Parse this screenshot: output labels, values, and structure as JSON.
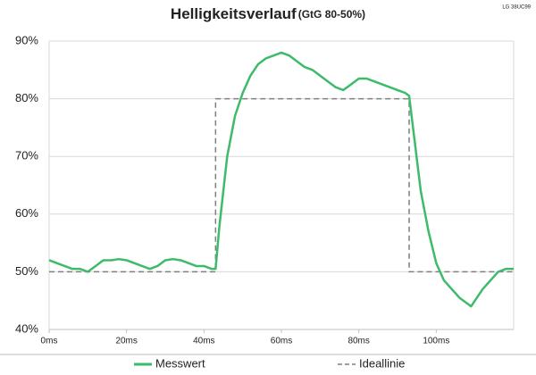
{
  "chart_data": {
    "type": "line",
    "title": "Helligkeitsverlauf",
    "subtitle": "(GtG 80-50%)",
    "corner_label": "LG 38UC99",
    "series": [
      {
        "name": "Messwert",
        "color": "#3dbb6a",
        "dashed": false,
        "x": [
          0,
          2,
          4,
          6,
          8,
          10,
          12,
          14,
          16,
          18,
          20,
          22,
          24,
          26,
          28,
          30,
          32,
          34,
          36,
          38,
          40,
          42,
          43,
          44,
          46,
          48,
          50,
          52,
          54,
          56,
          58,
          60,
          62,
          64,
          66,
          68,
          70,
          72,
          74,
          76,
          78,
          80,
          82,
          84,
          86,
          88,
          90,
          92,
          93,
          94,
          96,
          98,
          100,
          102,
          104,
          106,
          108,
          109,
          110,
          112,
          114,
          116,
          118,
          120
        ],
        "values": [
          52,
          51.5,
          51,
          50.5,
          50.5,
          50,
          51,
          52,
          52,
          52.2,
          52,
          51.5,
          51,
          50.5,
          51,
          52,
          52.2,
          52,
          51.5,
          51,
          51,
          50.5,
          50.5,
          58,
          70,
          77,
          81,
          84,
          86,
          87,
          87.5,
          88,
          87.5,
          86.5,
          85.5,
          85,
          84,
          83,
          82,
          81.5,
          82.5,
          83.5,
          83.5,
          83,
          82.5,
          82,
          81.5,
          81,
          80.5,
          75,
          64,
          57,
          51.5,
          48.5,
          47,
          45.5,
          44.5,
          44,
          45,
          47,
          48.5,
          50,
          50.5,
          50.5
        ]
      },
      {
        "name": "Ideallinie",
        "color": "#7f7f7f",
        "dashed": true,
        "x": [
          0,
          43,
          43,
          93,
          93,
          120
        ],
        "values": [
          50,
          50,
          80,
          80,
          50,
          50
        ]
      }
    ],
    "xlim": [
      0,
      120
    ],
    "xticks": [
      {
        "value": 0,
        "label": "0ms"
      },
      {
        "value": 20,
        "label": "20ms"
      },
      {
        "value": 40,
        "label": "40ms"
      },
      {
        "value": 60,
        "label": "60ms"
      },
      {
        "value": 80,
        "label": "80ms"
      },
      {
        "value": 100,
        "label": "100ms"
      }
    ],
    "ylim": [
      40,
      90
    ],
    "yticks": [
      {
        "value": 40,
        "label": "40%"
      },
      {
        "value": 50,
        "label": "50%"
      },
      {
        "value": 60,
        "label": "60%"
      },
      {
        "value": 70,
        "label": "70%"
      },
      {
        "value": 80,
        "label": "80%"
      },
      {
        "value": 90,
        "label": "90%"
      }
    ],
    "grid": true
  }
}
